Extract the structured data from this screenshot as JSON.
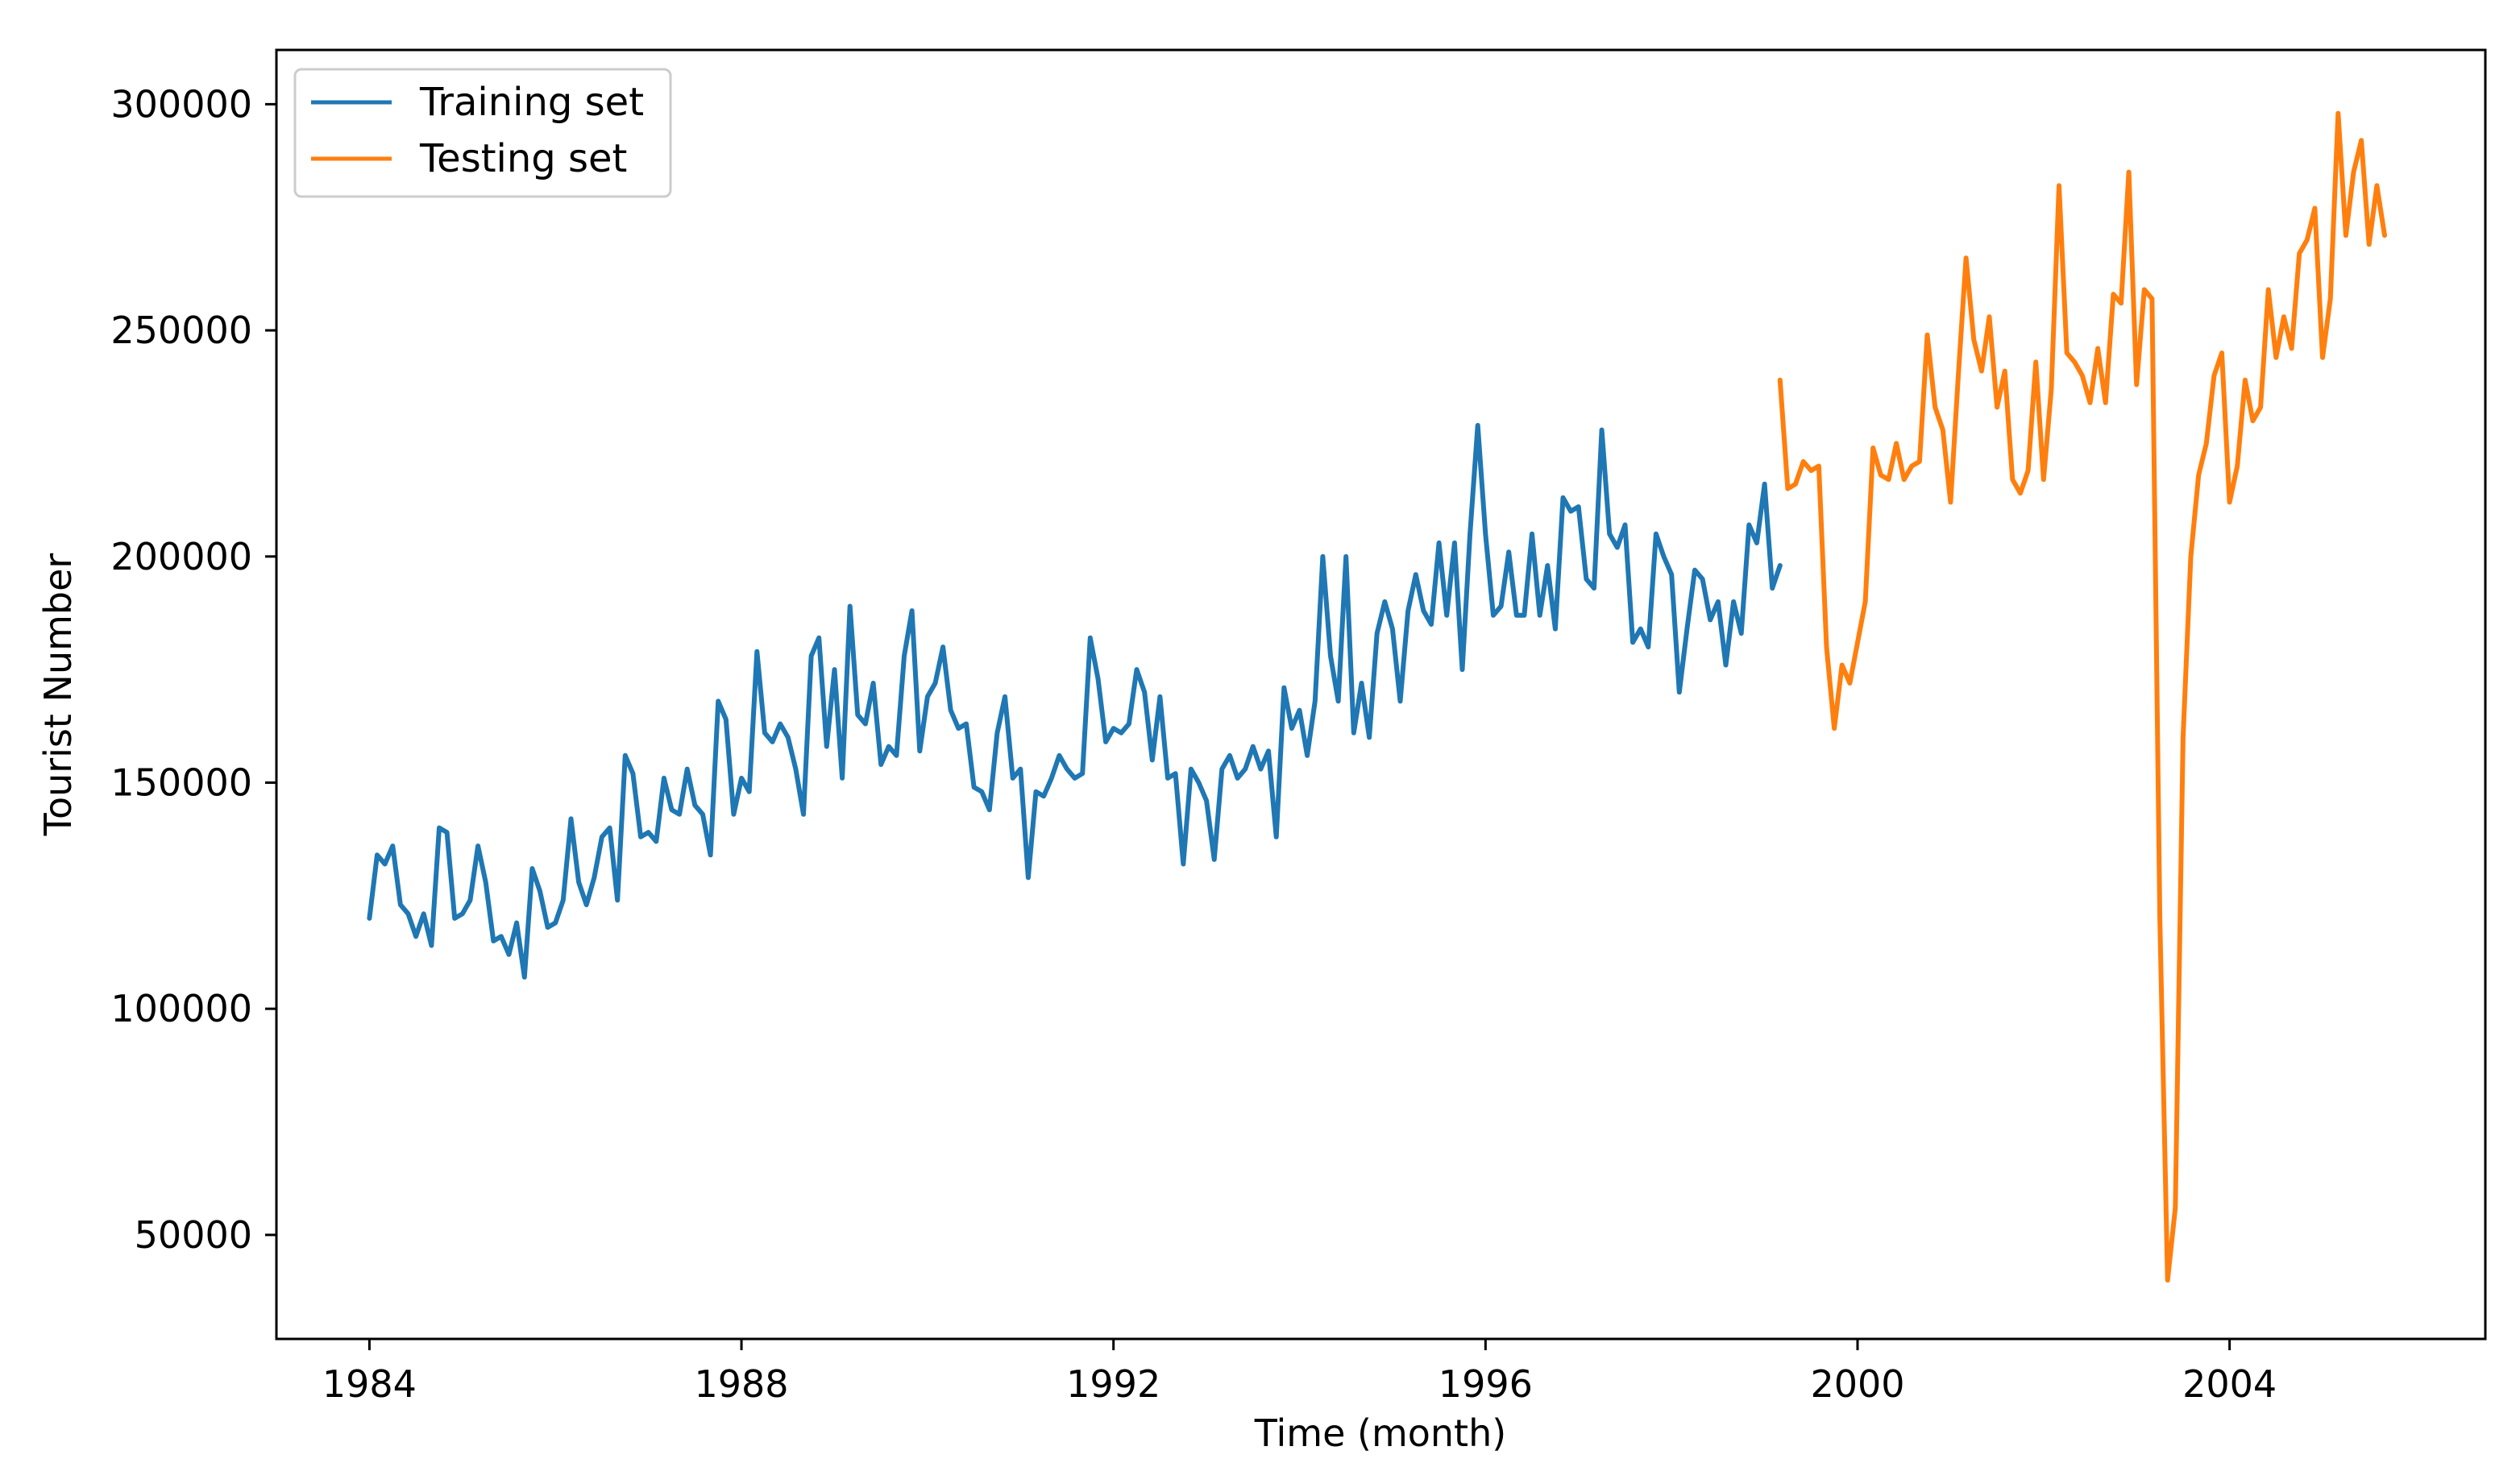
{
  "chart_data": {
    "type": "line",
    "title": "",
    "xlabel": "Time (month)",
    "ylabel": "Tourist Number",
    "xlim": [
      1983.0,
      2006.75
    ],
    "ylim": [
      27000,
      312000
    ],
    "grid": false,
    "legend_position": "top-left",
    "x_ticks": [
      1984,
      1988,
      1992,
      1996,
      2000,
      2004
    ],
    "x_tick_labels": [
      "1984",
      "1988",
      "1992",
      "1996",
      "2000",
      "2004"
    ],
    "y_ticks": [
      50000,
      100000,
      150000,
      200000,
      250000,
      300000
    ],
    "y_tick_labels": [
      "50000",
      "100000",
      "150000",
      "200000",
      "250000",
      "300000"
    ],
    "series": [
      {
        "name": "Training set",
        "color": "#1f77b4",
        "x_start": 1984.0,
        "x_step": 0.0833333,
        "values": [
          120000,
          134000,
          132000,
          136000,
          123000,
          121000,
          116000,
          121000,
          114000,
          140000,
          139000,
          120000,
          121000,
          124000,
          136000,
          128000,
          115000,
          116000,
          112000,
          119000,
          107000,
          131000,
          126000,
          118000,
          119000,
          124000,
          142000,
          128000,
          123000,
          129000,
          138000,
          140000,
          124000,
          156000,
          152000,
          138000,
          139000,
          137000,
          151000,
          144000,
          143000,
          153000,
          145000,
          143000,
          134000,
          168000,
          164000,
          143000,
          151000,
          148000,
          179000,
          161000,
          159000,
          163000,
          160000,
          153000,
          143000,
          178000,
          182000,
          158000,
          175000,
          151000,
          189000,
          165000,
          163000,
          172000,
          154000,
          158000,
          156000,
          178000,
          188000,
          157000,
          169000,
          172000,
          180000,
          166000,
          162000,
          163000,
          149000,
          148000,
          144000,
          161000,
          169000,
          151000,
          153000,
          129000,
          148000,
          147000,
          151000,
          156000,
          153000,
          151000,
          152000,
          182000,
          173000,
          159000,
          162000,
          161000,
          163000,
          175000,
          170000,
          155000,
          169000,
          151000,
          152000,
          132000,
          153000,
          150000,
          146000,
          133000,
          153000,
          156000,
          151000,
          153000,
          158000,
          153000,
          157000,
          138000,
          171000,
          162000,
          166000,
          156000,
          168000,
          200000,
          178000,
          168000,
          200000,
          161000,
          172000,
          160000,
          183000,
          190000,
          184000,
          168000,
          188000,
          196000,
          188000,
          185000,
          203000,
          187000,
          203000,
          175000,
          205000,
          229000,
          205000,
          187000,
          189000,
          201000,
          187000,
          187000,
          205000,
          187000,
          198000,
          184000,
          213000,
          210000,
          211000,
          195000,
          193000,
          228000,
          205000,
          202000,
          207000,
          181000,
          184000,
          180000,
          205000,
          200000,
          196000,
          170000,
          184000,
          197000,
          195000,
          186000,
          190000,
          176000,
          190000,
          183000,
          207000,
          203000,
          216000,
          193000,
          198000
        ]
      },
      {
        "name": "Testing set",
        "color": "#ff7f0e",
        "x_start": 1999.1667,
        "x_step": 0.0833333,
        "values": [
          239000,
          215000,
          216000,
          221000,
          219000,
          220000,
          180000,
          162000,
          176000,
          172000,
          181000,
          190000,
          224000,
          218000,
          217000,
          225000,
          217000,
          220000,
          221000,
          249000,
          233000,
          228000,
          212000,
          240000,
          266000,
          248000,
          241000,
          253000,
          233000,
          241000,
          217000,
          214000,
          219000,
          243000,
          217000,
          237000,
          282000,
          245000,
          243000,
          240000,
          234000,
          246000,
          234000,
          258000,
          256000,
          285000,
          238000,
          259000,
          257000,
          120000,
          40000,
          56000,
          160000,
          200000,
          218000,
          225000,
          240000,
          245000,
          212000,
          220000,
          239000,
          230000,
          233000,
          259000,
          244000,
          253000,
          246000,
          267000,
          270000,
          277000,
          244000,
          257000,
          298000,
          271000,
          285000,
          292000,
          269000,
          282000,
          271000
        ]
      }
    ]
  }
}
